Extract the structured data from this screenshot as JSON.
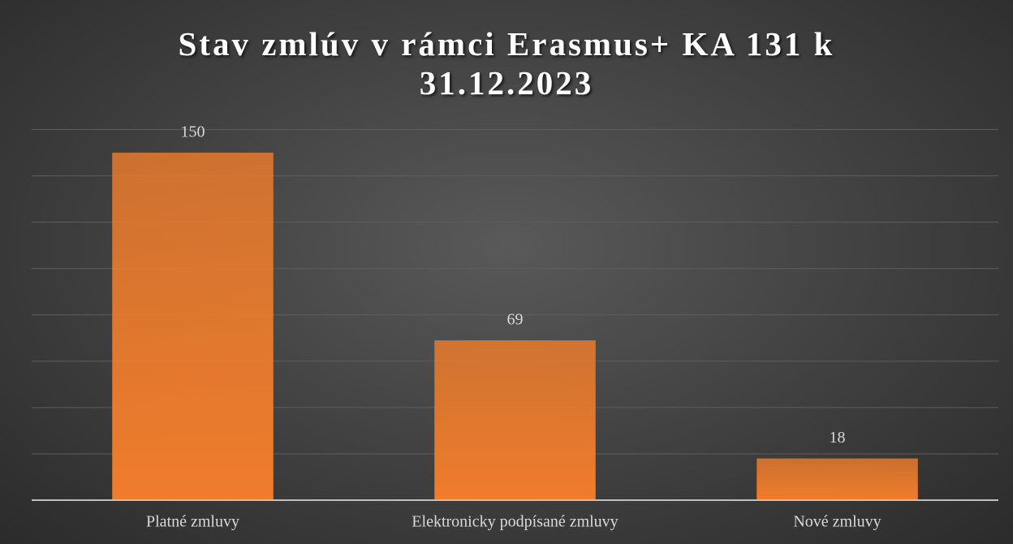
{
  "chart_data": {
    "type": "bar",
    "title": "Stav zmlúv v rámci Erasmus+ KA 131 k 31.12.2023",
    "categories": [
      "Platné zmluvy",
      "Elektronicky podpísané zmluvy",
      "Nové zmluvy"
    ],
    "values": [
      150,
      69,
      18
    ],
    "color": "#f07d2c",
    "ylim": [
      0,
      160
    ],
    "yticks": [
      0,
      20,
      40,
      60,
      80,
      100,
      120,
      140,
      160
    ],
    "grid": true
  }
}
